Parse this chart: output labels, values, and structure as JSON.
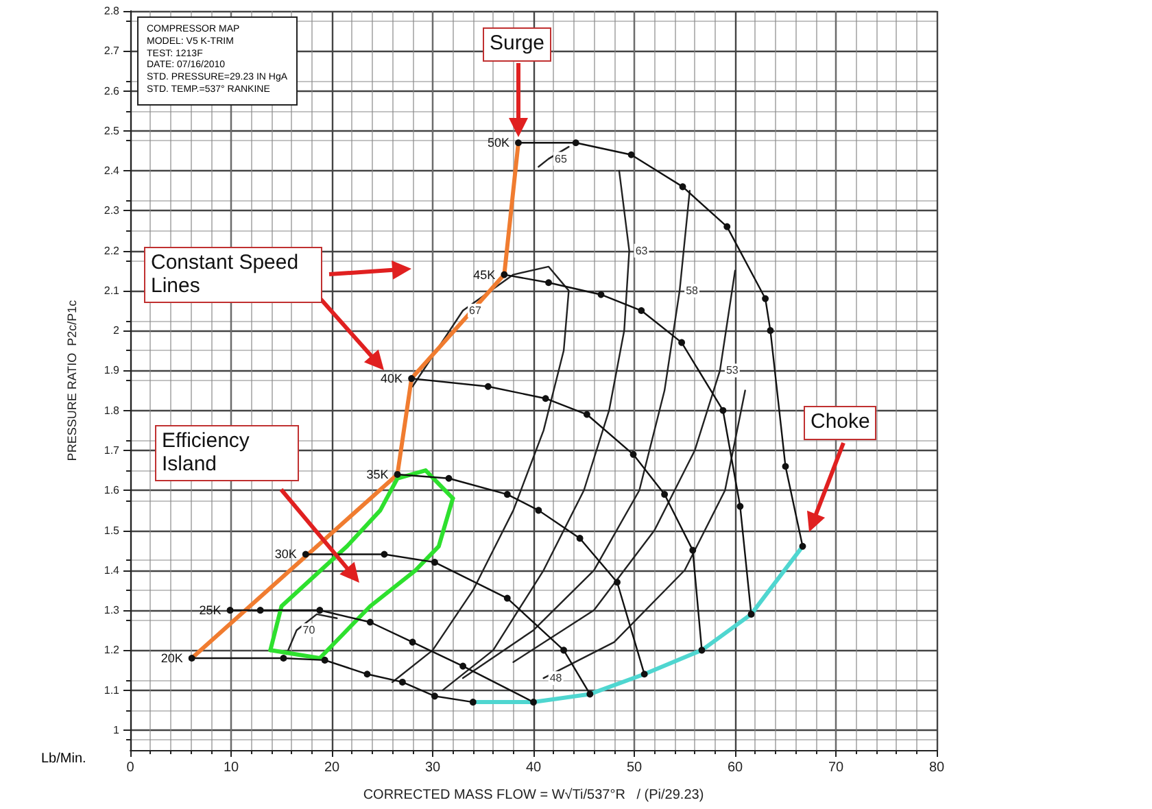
{
  "chart_data": {
    "type": "line",
    "xlabel": "CORRECTED MASS FLOW = W√Ti/537°R   / (Pi/29.23)",
    "ylabel": "PRESSURE RATIO  P2c/P1c",
    "xlim": [
      0,
      80
    ],
    "xticks": [
      0,
      10,
      20,
      30,
      40,
      50,
      60,
      70,
      80
    ],
    "ylim": [
      0.95,
      2.8
    ],
    "yticks": [
      1.0,
      1.1,
      1.2,
      1.3,
      1.4,
      1.5,
      1.6,
      1.7,
      1.8,
      1.9,
      2.0,
      2.1,
      2.2,
      2.3,
      2.4,
      2.5,
      2.6,
      2.7,
      2.8
    ],
    "grid": true,
    "legend": false,
    "marker": "circle",
    "series": [
      {
        "name": "20K",
        "color": "#111111",
        "x": [
          6.1,
          15.2,
          19.3,
          23.5,
          27,
          30.2,
          34
        ],
        "values": [
          1.18,
          1.18,
          1.175,
          1.14,
          1.12,
          1.085,
          1.07
        ]
      },
      {
        "name": "25K",
        "color": "#111111",
        "x": [
          9.9,
          12.9,
          18.8,
          23.8,
          28,
          33,
          40
        ],
        "values": [
          1.3,
          1.3,
          1.3,
          1.27,
          1.22,
          1.16,
          1.07
        ]
      },
      {
        "name": "30K",
        "color": "#111111",
        "x": [
          17.4,
          25.2,
          30.2,
          37.4,
          43,
          45.6
        ],
        "values": [
          1.44,
          1.44,
          1.42,
          1.33,
          1.2,
          1.09
        ]
      },
      {
        "name": "35K",
        "color": "#111111",
        "x": [
          26.5,
          31.6,
          37.4,
          40.5,
          44.6,
          48.3,
          51
        ],
        "values": [
          1.64,
          1.63,
          1.59,
          1.55,
          1.48,
          1.37,
          1.14
        ]
      },
      {
        "name": "40K",
        "color": "#111111",
        "x": [
          27.9,
          35.5,
          41.2,
          45.3,
          49.9,
          53,
          55.8,
          56.7
        ],
        "values": [
          1.88,
          1.86,
          1.83,
          1.79,
          1.69,
          1.59,
          1.45,
          1.2
        ]
      },
      {
        "name": "45K",
        "color": "#111111",
        "x": [
          37.1,
          41.5,
          46.7,
          50.7,
          54.7,
          58.8,
          60.5,
          61.6
        ],
        "values": [
          2.14,
          2.12,
          2.09,
          2.05,
          1.97,
          1.8,
          1.56,
          1.29
        ]
      },
      {
        "name": "50K",
        "color": "#111111",
        "x": [
          38.5,
          44.2,
          49.7,
          54.8,
          59.2,
          63,
          63.5,
          65,
          66.7
        ],
        "values": [
          2.47,
          2.47,
          2.44,
          2.36,
          2.26,
          2.08,
          2.0,
          1.66,
          1.46
        ]
      },
      {
        "name": "70",
        "color": "#222222",
        "marker": "none",
        "x": [
          15.5,
          16.5,
          18.5,
          20.5
        ],
        "values": [
          1.19,
          1.25,
          1.29,
          1.28
        ]
      },
      {
        "name": "65",
        "color": "#222222",
        "marker": "none",
        "x": [
          40.5,
          41.5,
          43.5
        ],
        "values": [
          2.41,
          2.43,
          2.46
        ]
      },
      {
        "name": "67",
        "color": "#222222",
        "marker": "none",
        "x": [
          28,
          33,
          38,
          41.5,
          43.5,
          43,
          41,
          38,
          34,
          30,
          26
        ],
        "values": [
          1.86,
          2.05,
          2.14,
          2.16,
          2.1,
          1.95,
          1.75,
          1.55,
          1.35,
          1.2,
          1.12
        ]
      },
      {
        "name": "63",
        "color": "#222222",
        "marker": "none",
        "x": [
          48.5,
          49.5,
          49,
          47.5,
          45,
          41,
          36,
          31
        ],
        "values": [
          2.4,
          2.2,
          2.0,
          1.8,
          1.6,
          1.4,
          1.2,
          1.1
        ]
      },
      {
        "name": "58",
        "color": "#222222",
        "marker": "none",
        "x": [
          55.5,
          54.5,
          53,
          50.5,
          46,
          40,
          33
        ],
        "values": [
          2.35,
          2.1,
          1.85,
          1.6,
          1.4,
          1.25,
          1.13
        ]
      },
      {
        "name": "53",
        "color": "#222222",
        "marker": "none",
        "x": [
          60,
          58.5,
          56,
          52,
          46,
          38
        ],
        "values": [
          2.15,
          1.9,
          1.7,
          1.5,
          1.3,
          1.17
        ]
      },
      {
        "name": "48",
        "color": "#222222",
        "marker": "none",
        "x": [
          61,
          59,
          55,
          48,
          41
        ],
        "values": [
          1.85,
          1.6,
          1.4,
          1.22,
          1.13
        ]
      },
      {
        "color": "#f07c30",
        "marker": "none",
        "x": [
          6.1,
          26.5,
          27.9,
          37.1,
          38.5
        ],
        "values": [
          1.18,
          1.64,
          1.88,
          2.14,
          2.47
        ]
      },
      {
        "color": "#4fd6d0",
        "marker": "none",
        "x": [
          34,
          40,
          45.6,
          51,
          56.7,
          61.6,
          66.7
        ],
        "values": [
          1.07,
          1.07,
          1.09,
          1.14,
          1.2,
          1.29,
          1.46
        ]
      },
      {
        "color": "#2ee02e",
        "marker": "none",
        "x": [
          13.9,
          15,
          21.5,
          24.8,
          26.5,
          29.3,
          32
        ],
        "values": [
          1.2,
          1.31,
          1.46,
          1.55,
          1.63,
          1.65,
          1.58
        ]
      },
      {
        "color": "#2ee02e",
        "marker": "none",
        "x": [
          13.9,
          18.8,
          23.8,
          28.3,
          30.6,
          32
        ],
        "values": [
          1.2,
          1.18,
          1.31,
          1.4,
          1.46,
          1.58
        ]
      }
    ],
    "annotations": [
      "COMPRESSOR MAP\nMODEL: V5 K-TRIM\nTEST: 1213F\nDATE: 07/16/2010\nSTD. PRESSURE=29.23 IN HgA\nSTD. TEMP.=537° RANKINE",
      "Lb/Min.",
      "Surge",
      "Constant Speed Lines",
      "Efficiency Island",
      "Choke"
    ]
  }
}
